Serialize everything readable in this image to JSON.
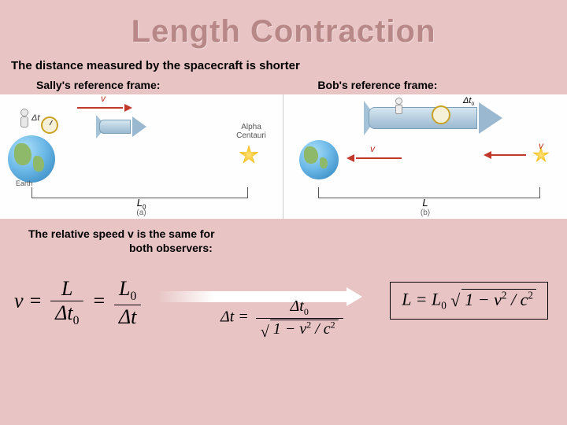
{
  "title": "Length Contraction",
  "subtitle": "The distance measured by the spacecraft is shorter",
  "frames": {
    "sally": "Sally's reference frame:",
    "bob": "Bob's reference frame:"
  },
  "panelA": {
    "earth_label": "Earth",
    "delta_t": "Δt",
    "velocity": "v",
    "star_label": "Alpha Centauri",
    "length": "L",
    "length_sub": "0",
    "tag": "(a)"
  },
  "panelB": {
    "delta_t0": "Δt",
    "delta_t0_sub": "0",
    "velocity1": "v",
    "velocity2": "v",
    "length": "L",
    "tag": "(b)"
  },
  "note_line1": "The relative speed v is the same for",
  "note_line2": "both observers:",
  "eq1": {
    "lhs": "v",
    "eq": " = ",
    "num1": "L",
    "den1": "Δt",
    "den1_sub": "0",
    "num2": "L",
    "num2_sub": "0",
    "den2": "Δt"
  },
  "eq2": {
    "lhs": "Δt =",
    "num": "Δt",
    "num_sub": "0",
    "rad": "1 − v",
    "rad_sup2a": "2",
    "rad_mid": " / c",
    "rad_sup2b": "2"
  },
  "eq3": {
    "lhs": "L = L",
    "lhs_sub": "0",
    "rad": "1 − v",
    "rad_sup2a": "2",
    "rad_mid": " / c",
    "rad_sup2b": "2"
  },
  "colors": {
    "background": "#e8c4c4",
    "title": "#b88888",
    "arrow": "#c0392b"
  }
}
